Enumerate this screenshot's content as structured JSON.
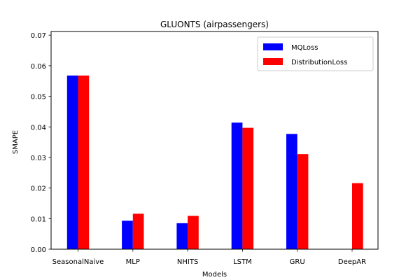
{
  "chart_data": {
    "type": "bar",
    "title": "GLUONTS (airpassengers)",
    "xlabel": "Models",
    "ylabel": "SMAPE",
    "categories": [
      "SeasonalNaive",
      "MLP",
      "NHITS",
      "LSTM",
      "GRU",
      "DeepAR"
    ],
    "series": [
      {
        "name": "MQLoss",
        "color": "#0000ff",
        "values": [
          0.0568,
          0.0093,
          0.0085,
          0.0414,
          0.0377,
          null
        ]
      },
      {
        "name": "DistributionLoss",
        "color": "#ff0000",
        "values": [
          0.0568,
          0.0116,
          0.0109,
          0.0397,
          0.0311,
          0.0216
        ]
      }
    ],
    "ylim": [
      0,
      0.0712
    ],
    "yticks": [
      "0.00",
      "0.01",
      "0.02",
      "0.03",
      "0.04",
      "0.05",
      "0.06",
      "0.07"
    ],
    "grid": false,
    "legend_position": "top-right"
  }
}
